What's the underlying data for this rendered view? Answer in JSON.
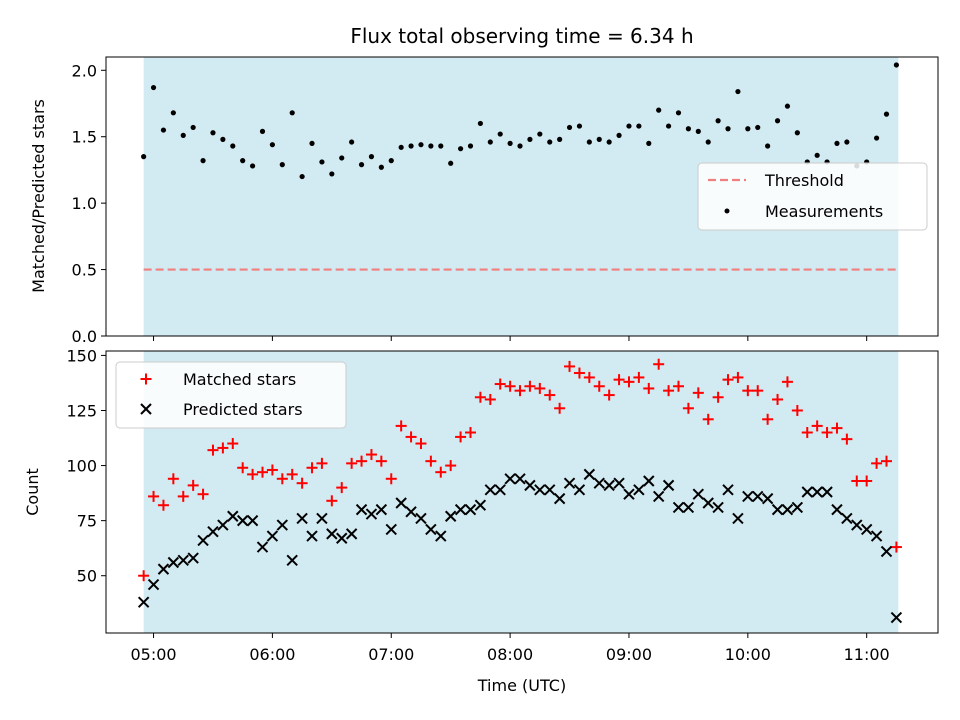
{
  "figure_title": "Flux total observing time = 6.34 h",
  "colors": {
    "observing_window": "#add8e6",
    "threshold": "#f08080",
    "measurements": "#000000",
    "matched": "#ff0000",
    "predicted": "#000000"
  },
  "chart_data": [
    {
      "type": "scatter",
      "ylabel": "Matched/Predicted stars",
      "xlabel": "",
      "ylim": [
        0,
        2.1
      ],
      "yticks": [
        "0.0",
        "0.5",
        "1.0",
        "1.5",
        "2.0"
      ],
      "x_tick_labels_visible": false,
      "observing_window": {
        "start": "04:55",
        "end": "11:16"
      },
      "threshold": {
        "name": "Threshold",
        "value": 0.5
      },
      "legend": {
        "placement": "center-right",
        "entries": [
          "Threshold",
          "Measurements"
        ]
      },
      "series": [
        {
          "name": "Measurements",
          "marker": "dot",
          "points": [
            [
              "04:55",
              1.35
            ],
            [
              "05:00",
              1.87
            ],
            [
              "05:05",
              1.55
            ],
            [
              "05:10",
              1.68
            ],
            [
              "05:15",
              1.51
            ],
            [
              "05:20",
              1.57
            ],
            [
              "05:25",
              1.32
            ],
            [
              "05:30",
              1.53
            ],
            [
              "05:35",
              1.48
            ],
            [
              "05:40",
              1.43
            ],
            [
              "05:45",
              1.32
            ],
            [
              "05:50",
              1.28
            ],
            [
              "05:55",
              1.54
            ],
            [
              "06:00",
              1.44
            ],
            [
              "06:05",
              1.29
            ],
            [
              "06:10",
              1.68
            ],
            [
              "06:15",
              1.2
            ],
            [
              "06:20",
              1.45
            ],
            [
              "06:25",
              1.31
            ],
            [
              "06:30",
              1.22
            ],
            [
              "06:35",
              1.34
            ],
            [
              "06:40",
              1.46
            ],
            [
              "06:45",
              1.29
            ],
            [
              "06:50",
              1.35
            ],
            [
              "06:55",
              1.27
            ],
            [
              "07:00",
              1.32
            ],
            [
              "07:05",
              1.42
            ],
            [
              "07:10",
              1.43
            ],
            [
              "07:15",
              1.44
            ],
            [
              "07:20",
              1.43
            ],
            [
              "07:25",
              1.43
            ],
            [
              "07:30",
              1.3
            ],
            [
              "07:35",
              1.41
            ],
            [
              "07:40",
              1.43
            ],
            [
              "07:45",
              1.6
            ],
            [
              "07:50",
              1.46
            ],
            [
              "07:55",
              1.52
            ],
            [
              "08:00",
              1.45
            ],
            [
              "08:05",
              1.43
            ],
            [
              "08:10",
              1.48
            ],
            [
              "08:15",
              1.52
            ],
            [
              "08:20",
              1.46
            ],
            [
              "08:25",
              1.48
            ],
            [
              "08:30",
              1.57
            ],
            [
              "08:35",
              1.58
            ],
            [
              "08:40",
              1.46
            ],
            [
              "08:45",
              1.48
            ],
            [
              "08:50",
              1.46
            ],
            [
              "08:55",
              1.51
            ],
            [
              "09:00",
              1.58
            ],
            [
              "09:05",
              1.58
            ],
            [
              "09:10",
              1.45
            ],
            [
              "09:15",
              1.7
            ],
            [
              "09:20",
              1.58
            ],
            [
              "09:25",
              1.68
            ],
            [
              "09:30",
              1.56
            ],
            [
              "09:35",
              1.54
            ],
            [
              "09:40",
              1.46
            ],
            [
              "09:45",
              1.62
            ],
            [
              "09:50",
              1.56
            ],
            [
              "09:55",
              1.84
            ],
            [
              "10:00",
              1.56
            ],
            [
              "10:05",
              1.57
            ],
            [
              "10:10",
              1.43
            ],
            [
              "10:15",
              1.62
            ],
            [
              "10:20",
              1.73
            ],
            [
              "10:25",
              1.53
            ],
            [
              "10:30",
              1.31
            ],
            [
              "10:35",
              1.36
            ],
            [
              "10:40",
              1.31
            ],
            [
              "10:45",
              1.45
            ],
            [
              "10:50",
              1.46
            ],
            [
              "10:55",
              1.28
            ],
            [
              "11:00",
              1.31
            ],
            [
              "11:05",
              1.49
            ],
            [
              "11:10",
              1.67
            ],
            [
              "11:15",
              2.04
            ]
          ]
        }
      ]
    },
    {
      "type": "scatter",
      "ylabel": "Count",
      "xlabel": "Time (UTC)",
      "ylim": [
        24,
        152
      ],
      "yticks": [
        "50",
        "75",
        "100",
        "125",
        "150"
      ],
      "xlim": [
        "04:36",
        "11:36"
      ],
      "xticks": [
        "05:00",
        "06:00",
        "07:00",
        "08:00",
        "09:00",
        "10:00",
        "11:00"
      ],
      "observing_window": {
        "start": "04:55",
        "end": "11:16"
      },
      "legend": {
        "placement": "top-left",
        "entries": [
          "Matched stars",
          "Predicted stars"
        ]
      },
      "series": [
        {
          "name": "Matched stars",
          "marker": "plus",
          "points": [
            [
              "04:55",
              50
            ],
            [
              "05:00",
              86
            ],
            [
              "05:05",
              82
            ],
            [
              "05:10",
              94
            ],
            [
              "05:15",
              86
            ],
            [
              "05:20",
              91
            ],
            [
              "05:25",
              87
            ],
            [
              "05:30",
              107
            ],
            [
              "05:35",
              108
            ],
            [
              "05:40",
              110
            ],
            [
              "05:45",
              99
            ],
            [
              "05:50",
              96
            ],
            [
              "05:55",
              97
            ],
            [
              "06:00",
              98
            ],
            [
              "06:05",
              94
            ],
            [
              "06:10",
              96
            ],
            [
              "06:15",
              92
            ],
            [
              "06:20",
              99
            ],
            [
              "06:25",
              101
            ],
            [
              "06:30",
              84
            ],
            [
              "06:35",
              90
            ],
            [
              "06:40",
              101
            ],
            [
              "06:45",
              102
            ],
            [
              "06:50",
              105
            ],
            [
              "06:55",
              102
            ],
            [
              "07:00",
              94
            ],
            [
              "07:05",
              118
            ],
            [
              "07:10",
              113
            ],
            [
              "07:15",
              110
            ],
            [
              "07:20",
              102
            ],
            [
              "07:25",
              97
            ],
            [
              "07:30",
              100
            ],
            [
              "07:35",
              113
            ],
            [
              "07:40",
              115
            ],
            [
              "07:45",
              131
            ],
            [
              "07:50",
              130
            ],
            [
              "07:55",
              137
            ],
            [
              "08:00",
              136
            ],
            [
              "08:05",
              134
            ],
            [
              "08:10",
              136
            ],
            [
              "08:15",
              135
            ],
            [
              "08:20",
              132
            ],
            [
              "08:25",
              126
            ],
            [
              "08:30",
              145
            ],
            [
              "08:35",
              142
            ],
            [
              "08:40",
              140
            ],
            [
              "08:45",
              136
            ],
            [
              "08:50",
              132
            ],
            [
              "08:55",
              139
            ],
            [
              "09:00",
              138
            ],
            [
              "09:05",
              140
            ],
            [
              "09:10",
              135
            ],
            [
              "09:15",
              146
            ],
            [
              "09:20",
              134
            ],
            [
              "09:25",
              136
            ],
            [
              "09:30",
              126
            ],
            [
              "09:35",
              133
            ],
            [
              "09:40",
              121
            ],
            [
              "09:45",
              131
            ],
            [
              "09:50",
              139
            ],
            [
              "09:55",
              140
            ],
            [
              "10:00",
              134
            ],
            [
              "10:05",
              134
            ],
            [
              "10:10",
              121
            ],
            [
              "10:15",
              130
            ],
            [
              "10:20",
              138
            ],
            [
              "10:25",
              125
            ],
            [
              "10:30",
              115
            ],
            [
              "10:35",
              118
            ],
            [
              "10:40",
              115
            ],
            [
              "10:45",
              117
            ],
            [
              "10:50",
              112
            ],
            [
              "10:55",
              93
            ],
            [
              "11:00",
              93
            ],
            [
              "11:05",
              101
            ],
            [
              "11:10",
              102
            ],
            [
              "11:15",
              63
            ]
          ]
        },
        {
          "name": "Predicted stars",
          "marker": "x",
          "points": [
            [
              "04:55",
              38
            ],
            [
              "05:00",
              46
            ],
            [
              "05:05",
              53
            ],
            [
              "05:10",
              56
            ],
            [
              "05:15",
              57
            ],
            [
              "05:20",
              58
            ],
            [
              "05:25",
              66
            ],
            [
              "05:30",
              70
            ],
            [
              "05:35",
              73
            ],
            [
              "05:40",
              77
            ],
            [
              "05:45",
              75
            ],
            [
              "05:50",
              75
            ],
            [
              "05:55",
              63
            ],
            [
              "06:00",
              68
            ],
            [
              "06:05",
              73
            ],
            [
              "06:10",
              57
            ],
            [
              "06:15",
              76
            ],
            [
              "06:20",
              68
            ],
            [
              "06:25",
              76
            ],
            [
              "06:30",
              69
            ],
            [
              "06:35",
              67
            ],
            [
              "06:40",
              69
            ],
            [
              "06:45",
              80
            ],
            [
              "06:50",
              78
            ],
            [
              "06:55",
              80
            ],
            [
              "07:00",
              71
            ],
            [
              "07:05",
              83
            ],
            [
              "07:10",
              79
            ],
            [
              "07:15",
              76
            ],
            [
              "07:20",
              71
            ],
            [
              "07:25",
              68
            ],
            [
              "07:30",
              77
            ],
            [
              "07:35",
              80
            ],
            [
              "07:40",
              80
            ],
            [
              "07:45",
              82
            ],
            [
              "07:50",
              89
            ],
            [
              "07:55",
              89
            ],
            [
              "08:00",
              94
            ],
            [
              "08:05",
              94
            ],
            [
              "08:10",
              91
            ],
            [
              "08:15",
              89
            ],
            [
              "08:20",
              89
            ],
            [
              "08:25",
              85
            ],
            [
              "08:30",
              92
            ],
            [
              "08:35",
              89
            ],
            [
              "08:40",
              96
            ],
            [
              "08:45",
              92
            ],
            [
              "08:50",
              91
            ],
            [
              "08:55",
              92
            ],
            [
              "09:00",
              87
            ],
            [
              "09:05",
              89
            ],
            [
              "09:10",
              93
            ],
            [
              "09:15",
              86
            ],
            [
              "09:20",
              91
            ],
            [
              "09:25",
              81
            ],
            [
              "09:30",
              81
            ],
            [
              "09:35",
              87
            ],
            [
              "09:40",
              83
            ],
            [
              "09:45",
              81
            ],
            [
              "09:50",
              89
            ],
            [
              "09:55",
              76
            ],
            [
              "10:00",
              86
            ],
            [
              "10:05",
              86
            ],
            [
              "10:10",
              85
            ],
            [
              "10:15",
              80
            ],
            [
              "10:20",
              80
            ],
            [
              "10:25",
              81
            ],
            [
              "10:30",
              88
            ],
            [
              "10:35",
              88
            ],
            [
              "10:40",
              88
            ],
            [
              "10:45",
              80
            ],
            [
              "10:50",
              76
            ],
            [
              "10:55",
              73
            ],
            [
              "11:00",
              71
            ],
            [
              "11:05",
              68
            ],
            [
              "11:10",
              61
            ],
            [
              "11:15",
              31
            ]
          ]
        }
      ]
    }
  ]
}
